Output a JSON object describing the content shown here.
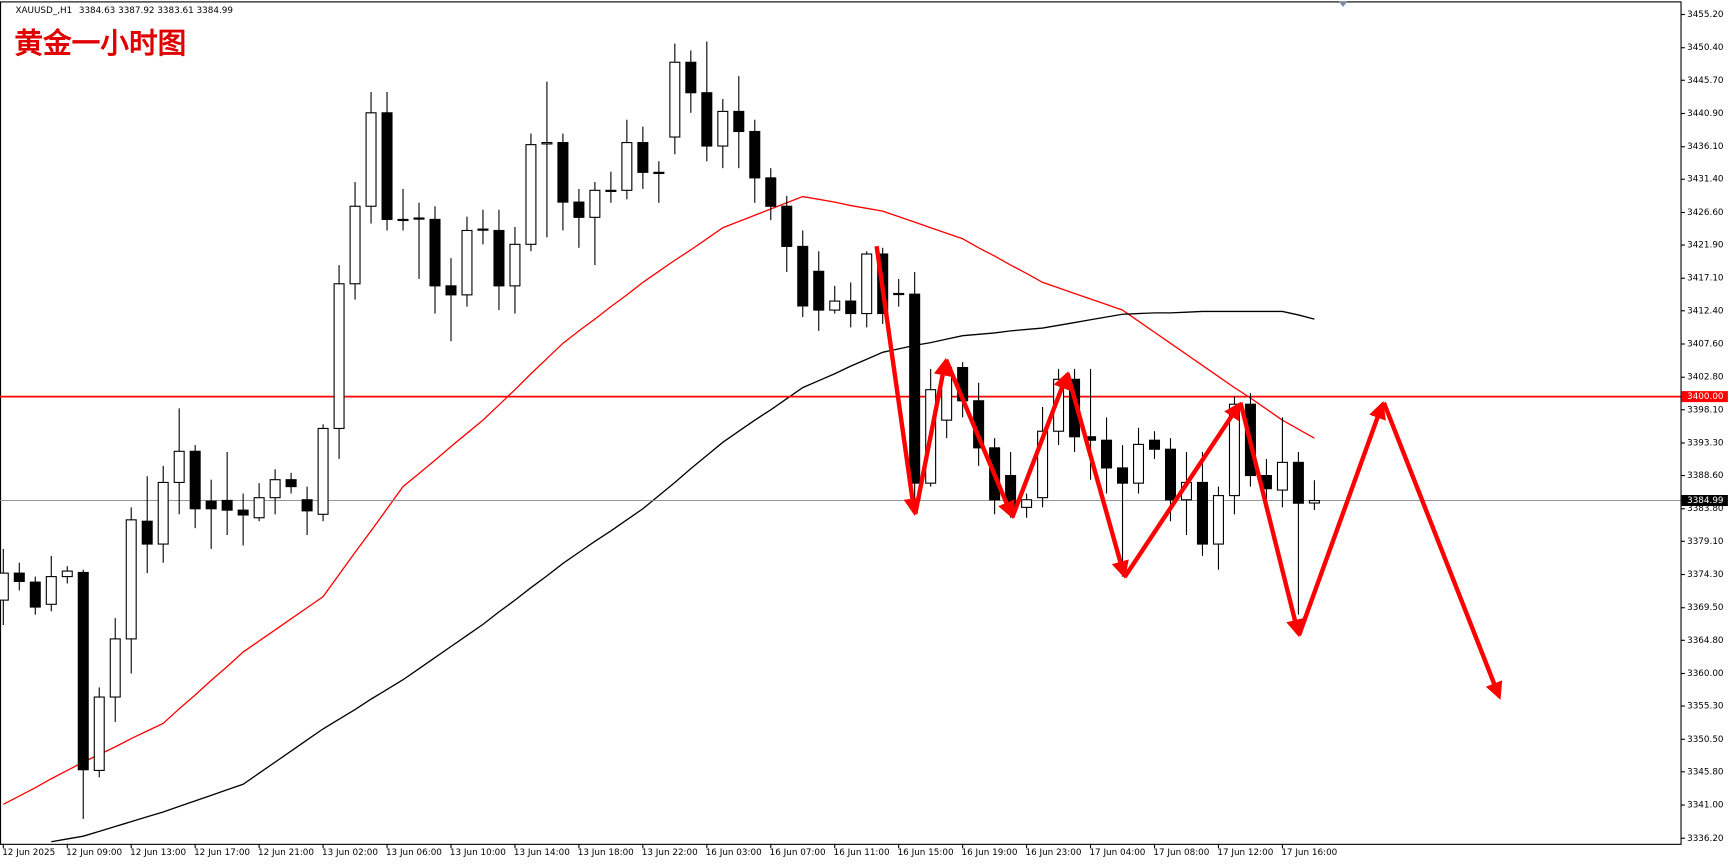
{
  "chart_data": {
    "type": "candlestick",
    "symbol": "XAUUSD_,H1",
    "quote": "3384.63 3387.92 3383.61 3384.99",
    "title": "黄金一小时图",
    "categories": [
      "12 Jun 2025",
      null,
      null,
      null,
      "12 Jun 09:00",
      null,
      null,
      null,
      "12 Jun 13:00",
      null,
      null,
      null,
      "12 Jun 17:00",
      null,
      null,
      null,
      "12 Jun 21:00",
      null,
      null,
      null,
      "13 Jun 02:00",
      null,
      null,
      null,
      "13 Jun 06:00",
      null,
      null,
      null,
      "13 Jun 10:00",
      null,
      null,
      null,
      "13 Jun 14:00",
      null,
      null,
      null,
      "13 Jun 18:00",
      null,
      null,
      null,
      "13 Jun 22:00",
      null,
      null,
      null,
      "16 Jun 03:00",
      null,
      null,
      null,
      "16 Jun 07:00",
      null,
      null,
      null,
      "16 Jun 11:00",
      null,
      null,
      null,
      "16 Jun 15:00",
      null,
      null,
      null,
      "16 Jun 19:00",
      null,
      null,
      null,
      "16 Jun 23:00",
      null,
      null,
      null,
      "17 Jun 04:00",
      null,
      null,
      null,
      "17 Jun 08:00",
      null,
      null,
      null,
      "17 Jun 12:00",
      null,
      null,
      null,
      "17 Jun 16:00",
      null,
      null
    ],
    "open": [
      3370.6,
      3374.5,
      3373.2,
      3370,
      3374,
      3374.6,
      3346,
      3356.6,
      3365,
      3382,
      3378.7,
      3387.6,
      3392.1,
      3384.9,
      3385,
      3383.6,
      3382.5,
      3385.4,
      3388,
      3385.1,
      3383,
      3395.4,
      3416.3,
      3427.5,
      3441,
      3425.5,
      3425.7,
      3425.6,
      3416,
      3414.7,
      3424.1,
      3424,
      3416,
      3422,
      3436.5,
      3436.7,
      3428.1,
      3425.9,
      3429.7,
      3429.8,
      3436.7,
      3432.4,
      3437.5,
      3448.3,
      3443.9,
      3436.2,
      3441.2,
      3438.3,
      3431.6,
      3427.5,
      3421.7,
      3418.1,
      3412.5,
      3413.8,
      3412,
      3420.6,
      3414.8,
      3414.8,
      3387.5,
      3396.6,
      3404.2,
      3399.4,
      3392.6,
      3388.6,
      3384,
      3385.4,
      3395,
      3402.5,
      3394.2,
      3393.7,
      3389.7,
      3387.5,
      3393.7,
      3392.4,
      3385.1,
      3387.6,
      3378.7,
      3385.7,
      3398.9,
      3388.6,
      3386.5,
      3390.5,
      3384.63
    ],
    "high": [
      3378,
      3376,
      3374,
      3377,
      3375.5,
      3375,
      3358,
      3368,
      3384,
      3388.5,
      3390,
      3398.3,
      3393,
      3388,
      3392,
      3386,
      3387.5,
      3389.5,
      3389,
      3387,
      3396,
      3419,
      3431,
      3444,
      3444,
      3430,
      3428,
      3427.5,
      3420,
      3426,
      3427,
      3427,
      3424.5,
      3438,
      3445.5,
      3438,
      3430,
      3431,
      3432.5,
      3440,
      3439,
      3434,
      3451,
      3450,
      3451.3,
      3443,
      3446.3,
      3440,
      3433,
      3429,
      3424,
      3421,
      3416,
      3416.5,
      3421,
      3421.5,
      3417,
      3418,
      3404,
      3405,
      3405,
      3402,
      3394,
      3392,
      3386,
      3398.5,
      3404,
      3404,
      3404,
      3397,
      3393,
      3395.5,
      3395,
      3394,
      3392,
      3392,
      3387,
      3400,
      3400.5,
      3391,
      3397,
      3392,
      3387.92
    ],
    "low": [
      3367,
      3372,
      3368.5,
      3369,
      3373,
      3339,
      3345,
      3353,
      3360,
      3374.5,
      3376,
      3383,
      3381,
      3378,
      3380,
      3378.5,
      3382,
      3383,
      3386,
      3380,
      3382,
      3391,
      3414,
      3425,
      3424,
      3424,
      3417,
      3412,
      3408,
      3413,
      3422,
      3412.5,
      3412,
      3421,
      3423,
      3424,
      3421.5,
      3419,
      3428,
      3428.5,
      3430,
      3428,
      3435,
      3441,
      3434,
      3433,
      3433,
      3428,
      3425.5,
      3418,
      3411.5,
      3409.5,
      3412,
      3410,
      3410,
      3410.5,
      3413,
      3385,
      3387,
      3394,
      3397,
      3390,
      3383,
      3382.5,
      3382.5,
      3384,
      3393,
      3392,
      3388,
      3386,
      3374,
      3386,
      3391,
      3382,
      3380,
      3377,
      3375,
      3383,
      3387,
      3385,
      3384,
      3368.5,
      3383.61
    ],
    "close": [
      3374.5,
      3373.3,
      3369.6,
      3374,
      3374.8,
      3346.1,
      3356.6,
      3365,
      3382.2,
      3378.7,
      3387.6,
      3392.1,
      3383.8,
      3383.8,
      3383.6,
      3382.9,
      3385.4,
      3388,
      3387,
      3383.5,
      3395.4,
      3416.3,
      3427.5,
      3441,
      3425.6,
      3425.6,
      3425.8,
      3416,
      3414.7,
      3424,
      3424.2,
      3416,
      3422,
      3436.4,
      3436.7,
      3428.1,
      3425.9,
      3429.8,
      3429.8,
      3436.7,
      3432.4,
      3432.4,
      3448.3,
      3443.9,
      3436.2,
      3441.2,
      3438.3,
      3431.6,
      3427.5,
      3421.7,
      3413.1,
      3412.5,
      3413.8,
      3412,
      3420.6,
      3412,
      3414.9,
      3387.5,
      3401,
      3404.2,
      3399.4,
      3392.6,
      3385.1,
      3383.5,
      3385.1,
      3395,
      3402.5,
      3394.2,
      3393.7,
      3389.7,
      3387.5,
      3393.1,
      3392.4,
      3385.1,
      3387.6,
      3378.7,
      3385.7,
      3398.9,
      3388.6,
      3386.7,
      3390.5,
      3384.6,
      3384.99
    ],
    "lines": [
      {
        "color": "#ff0000",
        "values": [
          3341.1,
          3342.3,
          3343.5,
          3344.8,
          3346.0,
          3347.2,
          3348.3,
          3349.4,
          3350.6,
          3351.7,
          3352.8,
          3354.9,
          3356.9,
          3359.0,
          3361.0,
          3363.1,
          3364.7,
          3366.3,
          3367.9,
          3369.5,
          3371.1,
          3374.3,
          3377.5,
          3380.6,
          3383.8,
          3387.0,
          3388.9,
          3390.8,
          3392.8,
          3394.7,
          3396.6,
          3398.8,
          3401.0,
          3403.3,
          3405.5,
          3407.7,
          3409.5,
          3411.2,
          3413.0,
          3414.7,
          3416.5,
          3418.1,
          3419.7,
          3421.2,
          3422.8,
          3424.4,
          3425.3,
          3426.2,
          3427.1,
          3428.0,
          3428.9,
          3428.5,
          3428.1,
          3427.6,
          3427.2,
          3426.8,
          3426.0,
          3425.2,
          3424.4,
          3423.6,
          3422.8,
          3421.5,
          3420.3,
          3419.0,
          3417.8,
          3416.5,
          3415.7,
          3414.9,
          3414.1,
          3413.3,
          3412.5,
          3410.9,
          3409.3,
          3407.7,
          3406.1,
          3404.5,
          3402.9,
          3401.3,
          3399.8,
          3398.2,
          3396.6,
          3395.3,
          3394.0
        ]
      },
      {
        "color": "#000000",
        "values": [
          null,
          null,
          null,
          3335.7,
          3336.1,
          3336.5,
          3337.2,
          3337.9,
          3338.6,
          3339.3,
          3340.0,
          3340.8,
          3341.6,
          3342.4,
          3343.2,
          3344.0,
          3345.6,
          3347.2,
          3348.8,
          3350.4,
          3352.0,
          3353.4,
          3354.8,
          3356.3,
          3357.7,
          3359.1,
          3360.7,
          3362.3,
          3363.9,
          3365.5,
          3367.1,
          3368.9,
          3370.6,
          3372.4,
          3374.1,
          3375.9,
          3377.5,
          3379.1,
          3380.6,
          3382.2,
          3383.8,
          3385.7,
          3387.6,
          3389.6,
          3391.5,
          3393.4,
          3395.0,
          3396.6,
          3398.1,
          3399.7,
          3401.3,
          3402.3,
          3403.3,
          3404.4,
          3405.4,
          3406.4,
          3406.9,
          3407.4,
          3407.8,
          3408.3,
          3408.8,
          3409.0,
          3409.2,
          3409.5,
          3409.7,
          3409.9,
          3410.3,
          3410.7,
          3411.1,
          3411.5,
          3411.9,
          3412.0,
          3412.1,
          3412.1,
          3412.2,
          3412.3,
          3412.3,
          3412.3,
          3412.3,
          3412.3,
          3412.3,
          3411.8,
          3411.2
        ]
      }
    ],
    "levels": [
      {
        "value": 3400,
        "label": "3400.00",
        "color": "#ff0000"
      },
      {
        "value": 3384.99,
        "label": "3384.99",
        "color": "#000000"
      }
    ],
    "ylim": [
      3335.4,
      3457.1
    ],
    "yticks": [
      {
        "value": 3455.2,
        "label": "3455.20"
      },
      {
        "value": 3450.4,
        "label": "3450.40"
      },
      {
        "value": 3445.7,
        "label": "3445.70"
      },
      {
        "value": 3440.9,
        "label": "3440.90"
      },
      {
        "value": 3436.1,
        "label": "3436.10"
      },
      {
        "value": 3431.4,
        "label": "3431.40"
      },
      {
        "value": 3426.6,
        "label": "3426.60"
      },
      {
        "value": 3421.9,
        "label": "3421.90"
      },
      {
        "value": 3417.1,
        "label": "3417.10"
      },
      {
        "value": 3412.4,
        "label": "3412.40"
      },
      {
        "value": 3407.6,
        "label": "3407.60"
      },
      {
        "value": 3402.8,
        "label": "3402.80"
      },
      {
        "value": 3398.1,
        "label": "3398.10"
      },
      {
        "value": 3393.3,
        "label": "3393.30"
      },
      {
        "value": 3388.6,
        "label": "3388.60"
      },
      {
        "value": 3383.8,
        "label": "3383.80"
      },
      {
        "value": 3379.1,
        "label": "3379.10"
      },
      {
        "value": 3374.3,
        "label": "3374.30"
      },
      {
        "value": 3369.5,
        "label": "3369.50"
      },
      {
        "value": 3364.8,
        "label": "3364.80"
      },
      {
        "value": 3360,
        "label": "3360.00"
      },
      {
        "value": 3355.3,
        "label": "3355.30"
      },
      {
        "value": 3350.5,
        "label": "3350.50"
      },
      {
        "value": 3345.8,
        "label": "3345.80"
      },
      {
        "value": 3341,
        "label": "3341.00"
      },
      {
        "value": 3336.2,
        "label": "3336.20"
      }
    ]
  }
}
